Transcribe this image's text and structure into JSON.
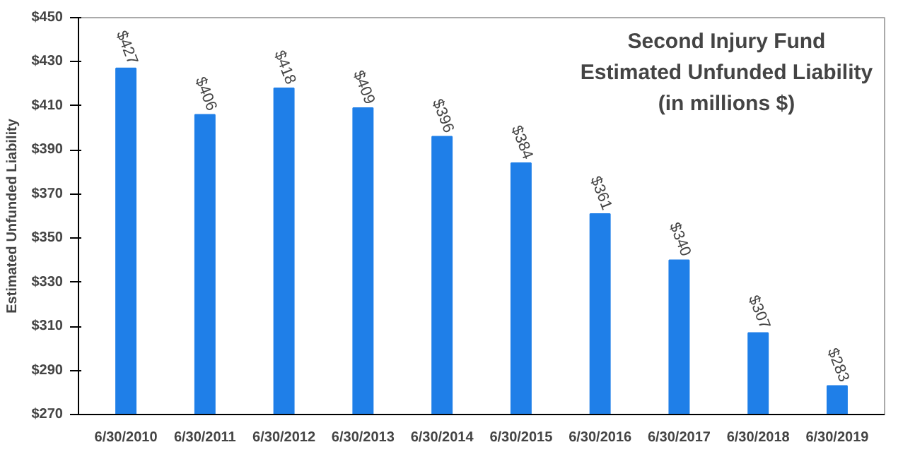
{
  "chart_data": {
    "type": "bar",
    "title": "Second Injury Fund\nEstimated Unfunded Liability\n(in millions $)",
    "ylabel": "Estimated Unfunded Liability",
    "categories": [
      "6/30/2010",
      "6/30/2011",
      "6/30/2012",
      "6/30/2013",
      "6/30/2014",
      "6/30/2015",
      "6/30/2016",
      "6/30/2017",
      "6/30/2018",
      "6/30/2019"
    ],
    "values": [
      427,
      406,
      418,
      409,
      396,
      384,
      361,
      340,
      307,
      283
    ],
    "value_labels": [
      "$427",
      "$406",
      "$418",
      "$409",
      "$396",
      "$384",
      "$361",
      "$340",
      "$307",
      "$283"
    ],
    "color": "#1f7fe8",
    "ylim": [
      270,
      450
    ],
    "yticks": [
      {
        "value": 270,
        "label": "$270"
      },
      {
        "value": 290,
        "label": "$290"
      },
      {
        "value": 310,
        "label": "$310"
      },
      {
        "value": 330,
        "label": "$330"
      },
      {
        "value": 350,
        "label": "$350"
      },
      {
        "value": 370,
        "label": "$370"
      },
      {
        "value": 390,
        "label": "$390"
      },
      {
        "value": 410,
        "label": "$410"
      },
      {
        "value": 430,
        "label": "$430"
      },
      {
        "value": 450,
        "label": "$450"
      }
    ],
    "grid": false
  }
}
